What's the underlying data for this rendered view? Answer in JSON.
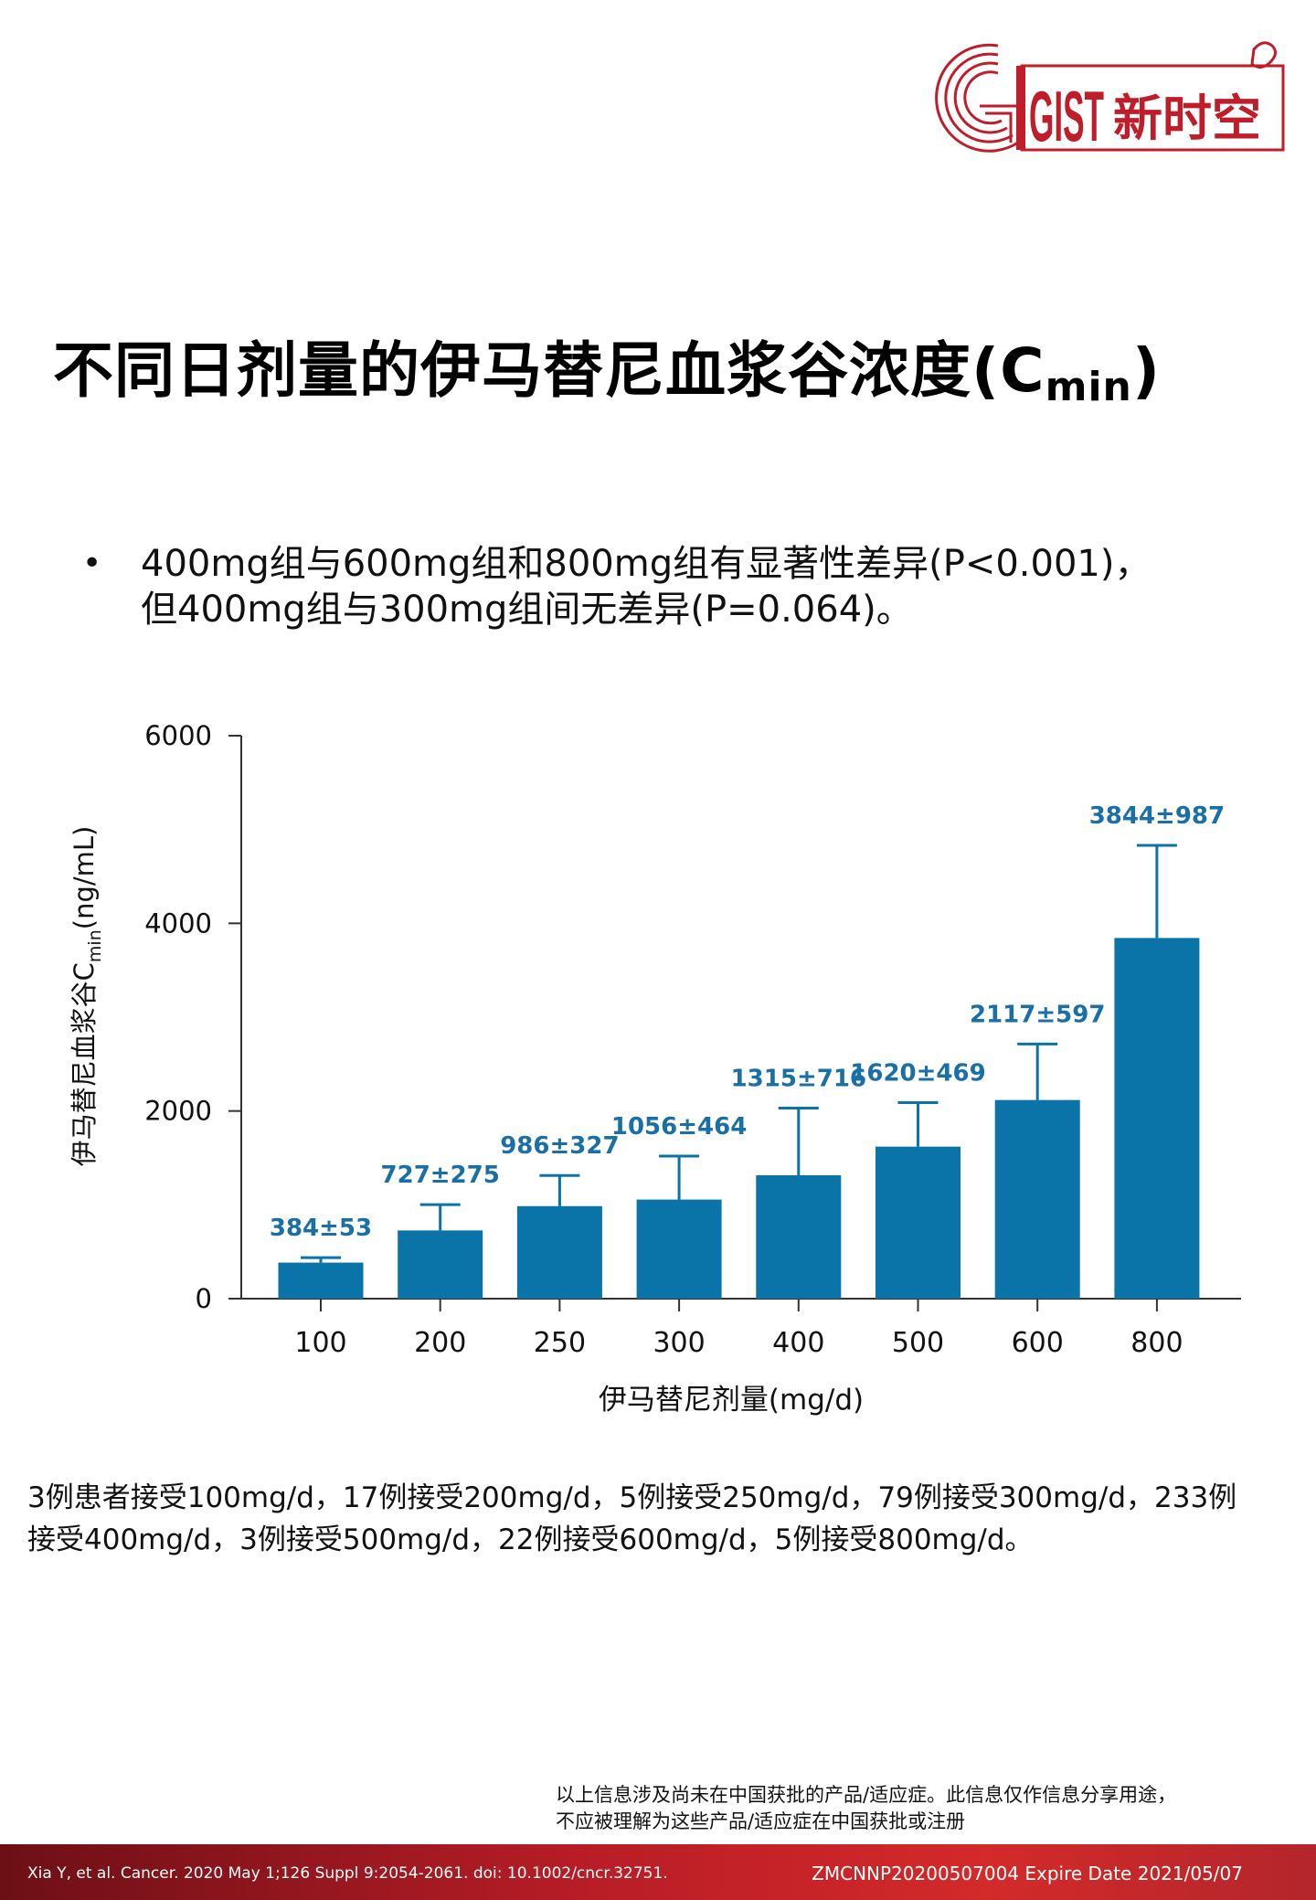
{
  "logo": {
    "text_gist": "GIST",
    "text_cn": "新时空",
    "color": "#c01d2a"
  },
  "title": {
    "main": "不同日剂量的伊马替尼血浆谷浓度(C",
    "sub": "min",
    "close": ")"
  },
  "bullet": {
    "marker": "•",
    "line1": "400mg组与600mg组和800mg组有显著性差异(P<0.001)，",
    "line2": "但400mg组与300mg组间无差异(P=0.064)。"
  },
  "chart_data": {
    "type": "bar",
    "categories": [
      "100",
      "200",
      "250",
      "300",
      "400",
      "500",
      "600",
      "800"
    ],
    "values": [
      384,
      727,
      986,
      1056,
      1315,
      1620,
      2117,
      3844
    ],
    "errors": [
      53,
      275,
      327,
      464,
      716,
      469,
      597,
      987
    ],
    "value_labels": [
      "384±53",
      "727±275",
      "986±327",
      "1056±464",
      "1315±716",
      "1620±469",
      "2117±597",
      "3844±987"
    ],
    "xlabel": "伊马替尼剂量(mg/d)",
    "ylabel": {
      "main": "伊马替尼血浆谷C",
      "sub": "min",
      "unit": "(ng/mL)"
    },
    "yticks": [
      "0",
      "2000",
      "4000",
      "6000"
    ],
    "ylim": [
      0,
      6000
    ],
    "bar_color": "#0a73a8",
    "label_color": "#1a6fa6"
  },
  "note": {
    "line1": "3例患者接受100mg/d，17例接受200mg/d，5例接受250mg/d，79例接受300mg/d，233例",
    "line2": "接受400mg/d，3例接受500mg/d，22例接受600mg/d，5例接受800mg/d。"
  },
  "disclaimer": {
    "line1": "以上信息涉及尚未在中国获批的产品/适应症。此信息仅作信息分享用途，",
    "line2": "不应被理解为这些产品/适应症在中国获批或注册"
  },
  "footer": {
    "reference": "Xia Y, et al. Cancer. 2020 May 1;126 Suppl 9:2054-2061. doi: 10.1002/cncr.32751.",
    "code": "ZMCNNP20200507004 Expire Date 2021/05/07"
  }
}
